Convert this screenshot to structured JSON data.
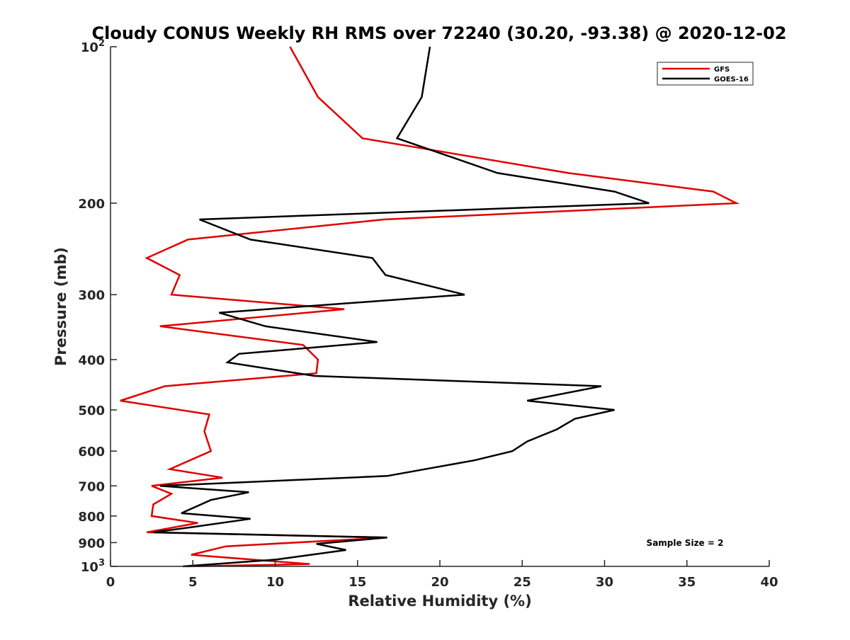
{
  "chart_data": {
    "type": "line",
    "title": "Cloudy CONUS Weekly RH RMS over 72240 (30.20, -93.38) @ 2020-12-02",
    "xlabel": "Relative Humidity (%)",
    "ylabel": "Pressure (mb)",
    "xlim": [
      0,
      40
    ],
    "ylim": [
      100,
      1000
    ],
    "yscale": "log",
    "yreversed": true,
    "grid": false,
    "legend_position": "top-right",
    "xticks": [
      0,
      5,
      10,
      15,
      20,
      25,
      30,
      35,
      40
    ],
    "xtick_labels": [
      "0",
      "5",
      "10",
      "15",
      "20",
      "25",
      "30",
      "35",
      "40"
    ],
    "yticks": [
      100,
      200,
      300,
      400,
      500,
      600,
      700,
      800,
      900,
      1000
    ],
    "ytick_labels": [
      {
        "base": "10",
        "sup": "2"
      },
      {
        "base": "200",
        "sup": ""
      },
      {
        "base": "300",
        "sup": ""
      },
      {
        "base": "400",
        "sup": ""
      },
      {
        "base": "500",
        "sup": ""
      },
      {
        "base": "600",
        "sup": ""
      },
      {
        "base": "700",
        "sup": ""
      },
      {
        "base": "800",
        "sup": ""
      },
      {
        "base": "900",
        "sup": ""
      },
      {
        "base": "10",
        "sup": "3"
      }
    ],
    "series": [
      {
        "name": "GFS",
        "color": "#e00000",
        "pressure": [
          100,
          125,
          150,
          175,
          190,
          200,
          215,
          235,
          255,
          275,
          300,
          320,
          345,
          375,
          400,
          425,
          450,
          480,
          510,
          550,
          600,
          650,
          675,
          700,
          725,
          760,
          800,
          825,
          860,
          880,
          915,
          950,
          990,
          1000
        ],
        "values": [
          10.9,
          12.6,
          15.3,
          27.8,
          36.6,
          38.0,
          16.6,
          4.7,
          2.2,
          4.2,
          3.7,
          14.2,
          3.0,
          11.7,
          12.6,
          12.5,
          3.3,
          0.6,
          6.0,
          5.7,
          6.1,
          3.6,
          6.8,
          2.5,
          3.7,
          2.6,
          2.5,
          5.3,
          2.2,
          16.8,
          7.0,
          4.9,
          12.1,
          4.6
        ]
      },
      {
        "name": "GOES-16",
        "color": "#000000",
        "pressure": [
          100,
          125,
          150,
          175,
          190,
          200,
          215,
          235,
          255,
          275,
          300,
          325,
          345,
          370,
          390,
          405,
          430,
          450,
          480,
          500,
          520,
          545,
          575,
          600,
          625,
          670,
          700,
          720,
          745,
          790,
          810,
          840,
          860,
          880,
          905,
          930,
          970,
          1000
        ],
        "values": [
          19.4,
          18.9,
          17.4,
          23.5,
          30.6,
          32.7,
          5.4,
          8.5,
          15.9,
          16.7,
          21.5,
          6.6,
          9.4,
          16.2,
          7.8,
          7.1,
          12.4,
          29.8,
          25.3,
          30.6,
          28.2,
          27.1,
          25.3,
          24.4,
          22.1,
          16.8,
          3.0,
          8.4,
          6.1,
          4.3,
          8.5,
          5.0,
          2.6,
          16.8,
          12.5,
          14.3,
          10.1,
          4.4
        ]
      }
    ],
    "annotations": [
      "Sample Size = 2"
    ]
  }
}
